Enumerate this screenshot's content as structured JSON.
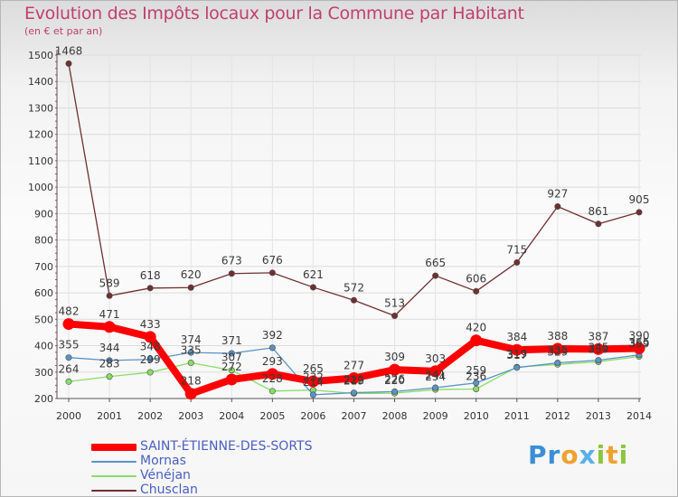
{
  "chart_data": {
    "type": "line",
    "title": "Evolution des Impôts locaux pour la Commune par Habitant",
    "subtitle": "(en € et par an)",
    "categories": [
      "2000",
      "2001",
      "2002",
      "2003",
      "2004",
      "2005",
      "2006",
      "2007",
      "2008",
      "2009",
      "2010",
      "2011",
      "2012",
      "2013",
      "2014"
    ],
    "ylim": [
      200,
      1500
    ],
    "yticks": [
      200,
      300,
      400,
      500,
      600,
      700,
      800,
      900,
      1000,
      1100,
      1200,
      1300,
      1400,
      1500
    ],
    "series": [
      {
        "name": "SAINT-ÉTIENNE-DES-SORTS",
        "color": "#ff0000",
        "values": [
          482,
          471,
          433,
          218,
          272,
          293,
          265,
          277,
          309,
          303,
          420,
          384,
          388,
          387,
          390
        ],
        "labels": [
          "482",
          "471",
          "433",
          "218",
          "272",
          "293",
          "265",
          "277",
          "309",
          "303",
          "420",
          "384",
          "388",
          "387",
          "390"
        ]
      },
      {
        "name": "Mornas",
        "color": "#5a93c5",
        "values": [
          355,
          344,
          348,
          374,
          371,
          392,
          214,
          222,
          226,
          241,
          259,
          317,
          335,
          345,
          365
        ],
        "labels": [
          "355",
          "344",
          "348",
          "374",
          "371",
          "392",
          "214",
          "222",
          "226",
          "241",
          "259",
          "317",
          "335",
          "345",
          "365"
        ]
      },
      {
        "name": "Vénéjan",
        "color": "#88dd66",
        "values": [
          264,
          283,
          299,
          335,
          307,
          228,
          232,
          219,
          220,
          234,
          236,
          319,
          329,
          339,
          359
        ],
        "labels": [
          "264",
          "283",
          "299",
          "335",
          "307",
          "228",
          "232",
          "219",
          "220",
          "234",
          "236",
          "319",
          "329",
          "339",
          "359"
        ]
      },
      {
        "name": "Chusclan",
        "color": "#703030",
        "values": [
          1468,
          589,
          618,
          620,
          673,
          676,
          621,
          572,
          513,
          665,
          606,
          715,
          927,
          861,
          905
        ],
        "labels": [
          "1468",
          "589",
          "618",
          "620",
          "673",
          "676",
          "621",
          "572",
          "513",
          "665",
          "606",
          "715",
          "927",
          "861",
          "905"
        ]
      }
    ]
  },
  "brand": {
    "p": "Pr",
    "o": "o",
    "x": "x",
    "i": "i",
    "t": "t",
    "i2": "i"
  }
}
